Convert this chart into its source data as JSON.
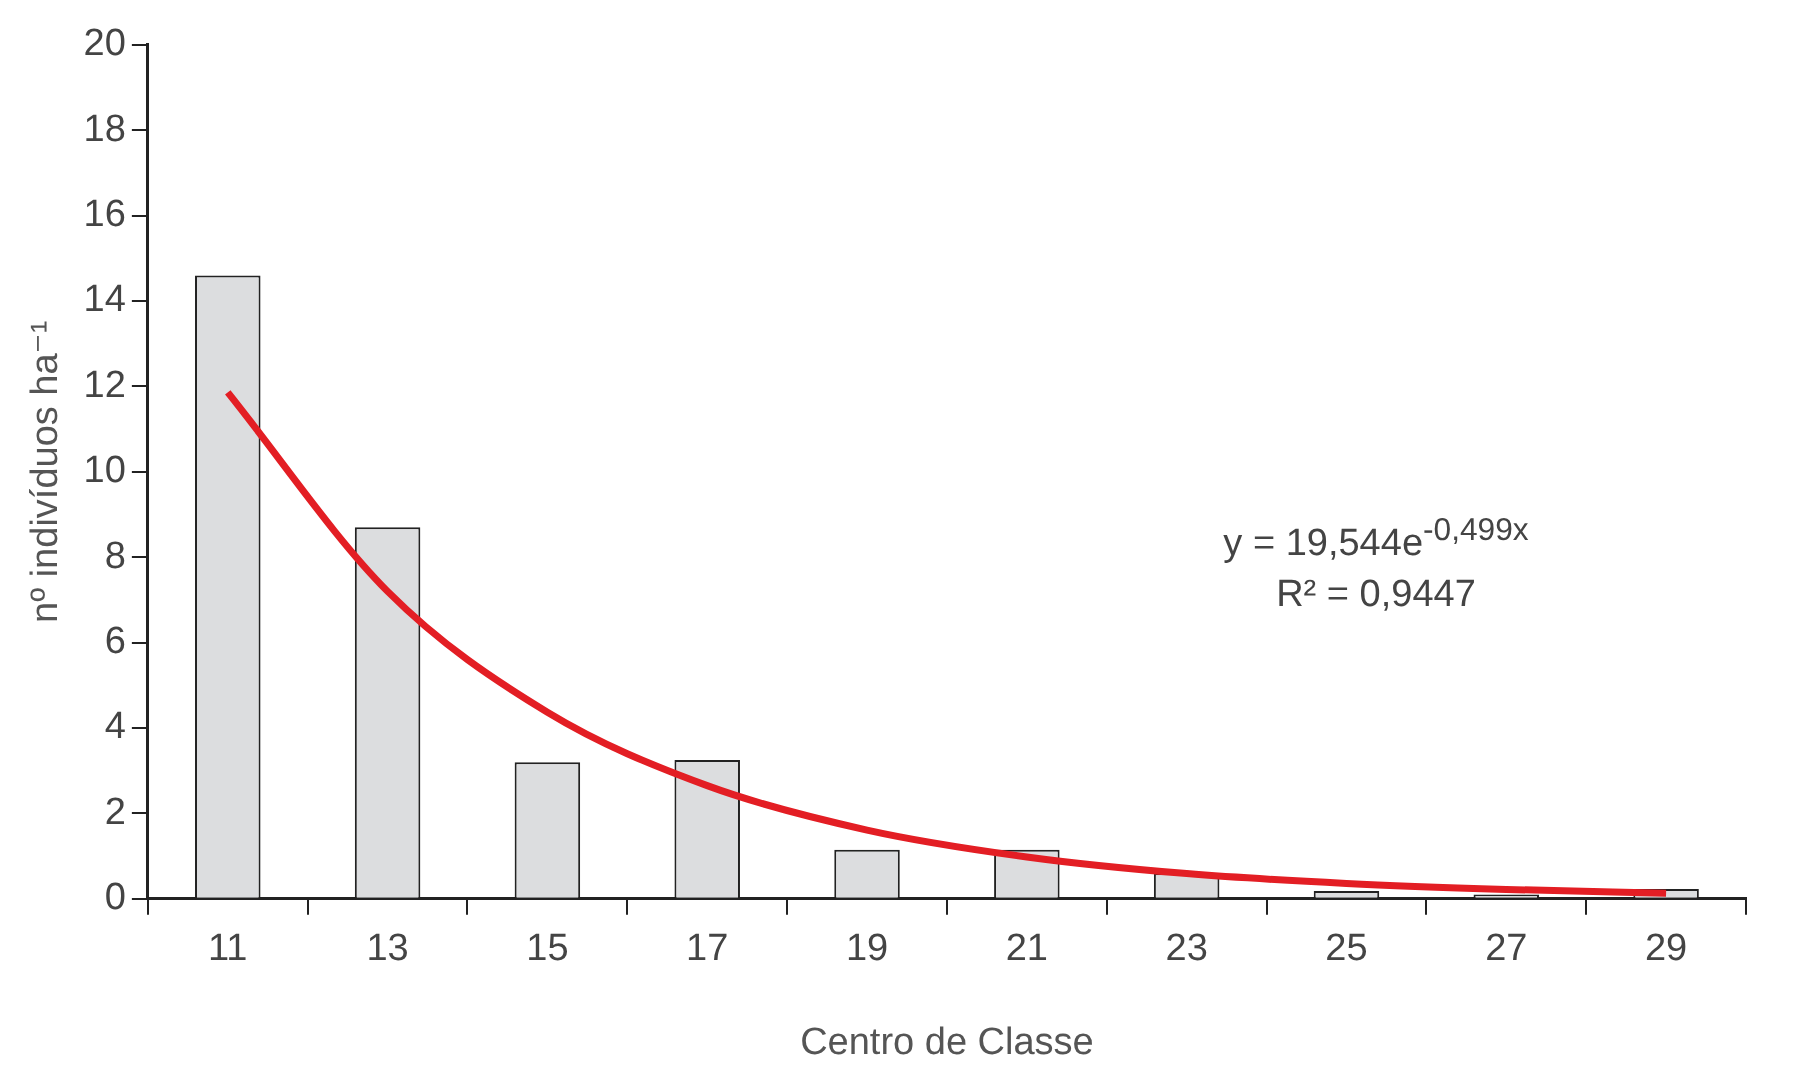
{
  "chart_data": {
    "type": "bar",
    "xlabel": "Centro de Classe",
    "ylabel": "nº indivíduos ha⁻¹",
    "categories": [
      "11",
      "13",
      "15",
      "17",
      "19",
      "21",
      "23",
      "25",
      "27",
      "29"
    ],
    "series": [
      {
        "color": "#dcdddf",
        "values": [
          14.6,
          8.7,
          3.2,
          3.25,
          1.15,
          1.15,
          0.6,
          0.18,
          0.1,
          0.23
        ]
      },
      {
        "type": "line",
        "color": "#e31e24",
        "values": [
          11.86,
          7.2,
          4.37,
          2.65,
          1.61,
          0.98,
          0.59,
          0.36,
          0.22,
          0.13
        ]
      }
    ],
    "ylim": [
      0,
      20
    ],
    "yticks": [
      0,
      2,
      4,
      6,
      8,
      10,
      12,
      14,
      16,
      18,
      20
    ],
    "grid": false,
    "legend": false,
    "marker": "none",
    "annotations": [
      "y = 19,544e$^{-0,499x}$",
      "R² = 0,9447"
    ]
  }
}
